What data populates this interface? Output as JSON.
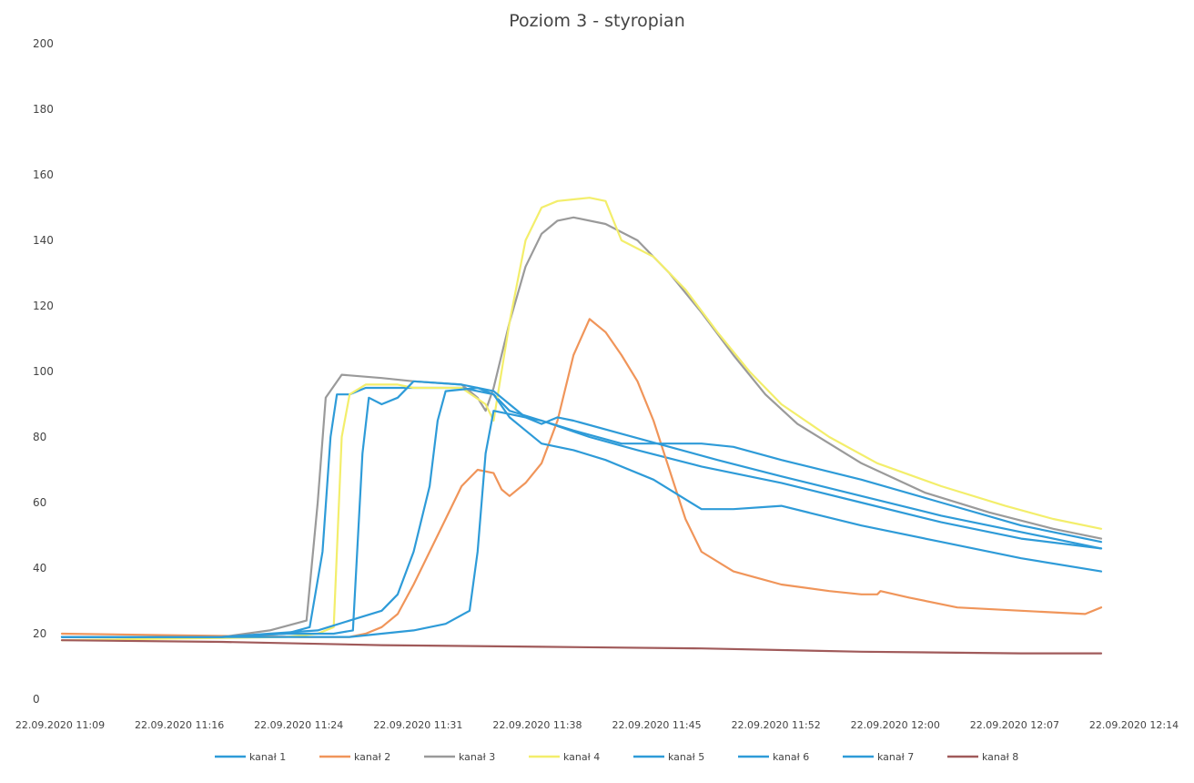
{
  "chart_data": {
    "type": "line",
    "title": "Poziom 3 - styropian",
    "xlabel": "",
    "ylabel": "",
    "ylim": [
      0,
      200
    ],
    "ytick_labels": [
      "0",
      "20",
      "40",
      "60",
      "80",
      "100",
      "120",
      "140",
      "160",
      "180",
      "200"
    ],
    "x_tick_labels": [
      "22.09.2020 11:09",
      "22.09.2020 11:16",
      "22.09.2020 11:24",
      "22.09.2020 11:31",
      "22.09.2020 11:38",
      "22.09.2020 11:45",
      "22.09.2020 11:52",
      "22.09.2020 12:00",
      "22.09.2020 12:07",
      "22.09.2020 12:14"
    ],
    "xlim": [
      0,
      65
    ],
    "x_unit": "minutes after 22.09.2020 11:09",
    "grid": false,
    "legend_position": "bottom",
    "series": [
      {
        "name": "kanał 1",
        "color": "#2e9bd8",
        "points": [
          [
            0,
            19
          ],
          [
            10,
            19
          ],
          [
            14,
            20
          ],
          [
            15.5,
            22
          ],
          [
            16.3,
            45
          ],
          [
            16.8,
            80
          ],
          [
            17.2,
            93
          ],
          [
            18,
            93
          ],
          [
            19,
            95
          ],
          [
            22,
            95
          ],
          [
            25,
            95
          ],
          [
            27,
            93
          ],
          [
            28,
            88
          ],
          [
            30,
            85
          ],
          [
            33,
            80
          ],
          [
            36,
            76
          ],
          [
            40,
            71
          ],
          [
            45,
            66
          ],
          [
            50,
            60
          ],
          [
            55,
            54
          ],
          [
            60,
            49
          ],
          [
            65,
            46
          ]
        ]
      },
      {
        "name": "kanał 2",
        "color": "#f0955a",
        "points": [
          [
            0,
            20
          ],
          [
            15,
            19
          ],
          [
            17,
            19
          ],
          [
            18,
            19
          ],
          [
            19,
            20
          ],
          [
            20,
            22
          ],
          [
            21,
            26
          ],
          [
            22,
            35
          ],
          [
            23,
            45
          ],
          [
            24,
            55
          ],
          [
            25,
            65
          ],
          [
            26,
            70
          ],
          [
            27,
            69
          ],
          [
            27.5,
            64
          ],
          [
            28,
            62
          ],
          [
            29,
            66
          ],
          [
            30,
            72
          ],
          [
            31,
            85
          ],
          [
            32,
            105
          ],
          [
            33,
            116
          ],
          [
            34,
            112
          ],
          [
            35,
            105
          ],
          [
            36,
            97
          ],
          [
            37,
            85
          ],
          [
            38,
            70
          ],
          [
            39,
            55
          ],
          [
            40,
            45
          ],
          [
            42,
            39
          ],
          [
            45,
            35
          ],
          [
            48,
            33
          ],
          [
            50,
            32
          ],
          [
            51,
            32
          ],
          [
            51.2,
            33
          ],
          [
            53,
            31
          ],
          [
            56,
            28
          ],
          [
            60,
            27
          ],
          [
            64,
            26
          ],
          [
            65,
            28
          ]
        ]
      },
      {
        "name": "kanał 3",
        "color": "#9a9a9a",
        "points": [
          [
            0,
            19
          ],
          [
            10,
            19
          ],
          [
            13,
            21
          ],
          [
            15.3,
            24
          ],
          [
            16,
            60
          ],
          [
            16.5,
            92
          ],
          [
            17.5,
            99
          ],
          [
            20,
            98
          ],
          [
            22,
            97
          ],
          [
            25,
            96
          ],
          [
            26,
            92
          ],
          [
            26.5,
            88
          ],
          [
            27,
            95
          ],
          [
            28,
            115
          ],
          [
            29,
            132
          ],
          [
            30,
            142
          ],
          [
            31,
            146
          ],
          [
            32,
            147
          ],
          [
            34,
            145
          ],
          [
            36,
            140
          ],
          [
            38,
            130
          ],
          [
            40,
            118
          ],
          [
            42,
            105
          ],
          [
            44,
            93
          ],
          [
            46,
            84
          ],
          [
            50,
            72
          ],
          [
            54,
            63
          ],
          [
            58,
            57
          ],
          [
            62,
            52
          ],
          [
            65,
            49
          ]
        ]
      },
      {
        "name": "kanał 4",
        "color": "#f3ee6b",
        "points": [
          [
            0,
            18
          ],
          [
            14,
            19
          ],
          [
            16,
            20
          ],
          [
            17,
            22
          ],
          [
            17.5,
            80
          ],
          [
            18,
            93
          ],
          [
            19,
            96
          ],
          [
            21,
            96
          ],
          [
            22,
            95
          ],
          [
            25,
            95
          ],
          [
            26.5,
            90
          ],
          [
            27,
            85
          ],
          [
            28,
            115
          ],
          [
            29,
            140
          ],
          [
            30,
            150
          ],
          [
            31,
            152
          ],
          [
            33,
            153
          ],
          [
            34,
            152
          ],
          [
            34.5,
            146
          ],
          [
            35,
            140
          ],
          [
            37,
            135
          ],
          [
            39,
            125
          ],
          [
            41,
            112
          ],
          [
            43,
            100
          ],
          [
            45,
            90
          ],
          [
            48,
            80
          ],
          [
            51,
            72
          ],
          [
            55,
            65
          ],
          [
            59,
            59
          ],
          [
            62,
            55
          ],
          [
            65,
            52
          ]
        ]
      },
      {
        "name": "kanał 5",
        "color": "#2e9bd8",
        "points": [
          [
            0,
            19
          ],
          [
            10,
            19
          ],
          [
            14,
            20
          ],
          [
            17,
            20
          ],
          [
            18.2,
            21
          ],
          [
            18.8,
            75
          ],
          [
            19.2,
            92
          ],
          [
            20,
            90
          ],
          [
            21,
            92
          ],
          [
            22,
            97
          ],
          [
            25,
            96
          ],
          [
            26,
            95
          ],
          [
            27,
            94
          ],
          [
            28,
            90
          ],
          [
            29,
            86
          ],
          [
            30,
            84
          ],
          [
            31,
            86
          ],
          [
            32,
            85
          ],
          [
            35,
            81
          ],
          [
            38,
            77
          ],
          [
            41,
            73
          ],
          [
            45,
            68
          ],
          [
            50,
            62
          ],
          [
            55,
            56
          ],
          [
            60,
            51
          ],
          [
            65,
            46
          ]
        ]
      },
      {
        "name": "kanał 6",
        "color": "#2e9bd8",
        "points": [
          [
            0,
            19
          ],
          [
            10,
            19
          ],
          [
            16,
            21
          ],
          [
            18,
            24
          ],
          [
            20,
            27
          ],
          [
            21,
            32
          ],
          [
            22,
            45
          ],
          [
            23,
            65
          ],
          [
            23.5,
            85
          ],
          [
            24,
            94
          ],
          [
            26,
            95
          ],
          [
            27,
            93
          ],
          [
            28,
            86
          ],
          [
            29,
            82
          ],
          [
            30,
            78
          ],
          [
            32,
            76
          ],
          [
            34,
            73
          ],
          [
            37,
            67
          ],
          [
            40,
            58
          ],
          [
            42,
            58
          ],
          [
            45,
            59
          ],
          [
            50,
            53
          ],
          [
            55,
            48
          ],
          [
            60,
            43
          ],
          [
            65,
            39
          ]
        ]
      },
      {
        "name": "kanał 7",
        "color": "#2e9bd8",
        "points": [
          [
            0,
            19
          ],
          [
            10,
            19
          ],
          [
            18,
            19
          ],
          [
            20,
            20
          ],
          [
            22,
            21
          ],
          [
            24,
            23
          ],
          [
            25.5,
            27
          ],
          [
            26,
            45
          ],
          [
            26.5,
            75
          ],
          [
            27,
            88
          ],
          [
            28,
            87
          ],
          [
            30,
            85
          ],
          [
            32,
            82
          ],
          [
            35,
            78
          ],
          [
            38,
            78
          ],
          [
            40,
            78
          ],
          [
            42,
            77
          ],
          [
            45,
            73
          ],
          [
            50,
            67
          ],
          [
            55,
            60
          ],
          [
            60,
            53
          ],
          [
            65,
            48
          ]
        ]
      },
      {
        "name": "kanał 8",
        "color": "#a05a5a",
        "points": [
          [
            0,
            18
          ],
          [
            10,
            17.5
          ],
          [
            20,
            16.5
          ],
          [
            30,
            16
          ],
          [
            40,
            15.5
          ],
          [
            50,
            14.5
          ],
          [
            60,
            14
          ],
          [
            65,
            14
          ]
        ]
      }
    ]
  }
}
